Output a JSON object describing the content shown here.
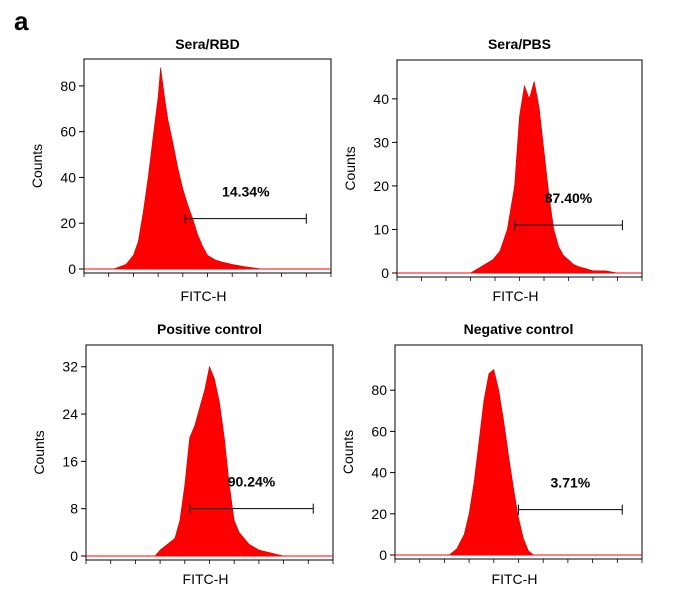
{
  "figure": {
    "panel_label": "a"
  },
  "chart_data": [
    {
      "type": "area",
      "title": "Sera/RBD",
      "xlabel": "FITC-H",
      "ylabel": "Counts",
      "ylim": [
        0,
        90
      ],
      "yticks": [
        0,
        20,
        40,
        60,
        80
      ],
      "xlim": [
        0,
        1
      ],
      "x": [
        0.0,
        0.12,
        0.17,
        0.2,
        0.22,
        0.24,
        0.26,
        0.28,
        0.3,
        0.31,
        0.32,
        0.33,
        0.34,
        0.36,
        0.38,
        0.4,
        0.42,
        0.44,
        0.46,
        0.48,
        0.5,
        0.53,
        0.56,
        0.6,
        0.65,
        0.72,
        1.0
      ],
      "values": [
        0,
        0,
        2,
        6,
        12,
        25,
        40,
        58,
        75,
        88,
        80,
        72,
        65,
        55,
        44,
        35,
        28,
        22,
        15,
        10,
        6,
        4,
        3,
        2,
        1,
        0,
        0
      ],
      "color": "#ff0000",
      "gate": {
        "label": "14.34%",
        "x_range": [
          0.41,
          0.9
        ],
        "y": 22
      }
    },
    {
      "type": "area",
      "title": "Sera/PBS",
      "xlabel": "FITC-H",
      "ylabel": "Counts",
      "ylim": [
        0,
        48
      ],
      "yticks": [
        0,
        10,
        20,
        30,
        40
      ],
      "xlim": [
        0,
        1
      ],
      "x": [
        0.0,
        0.3,
        0.33,
        0.36,
        0.39,
        0.42,
        0.45,
        0.48,
        0.5,
        0.52,
        0.54,
        0.56,
        0.58,
        0.6,
        0.62,
        0.64,
        0.66,
        0.68,
        0.7,
        0.72,
        0.74,
        0.77,
        0.8,
        0.85,
        0.9,
        1.0
      ],
      "values": [
        0,
        0,
        1,
        2,
        3,
        5,
        10,
        20,
        36,
        43,
        40,
        44,
        38,
        28,
        18,
        10,
        6,
        4,
        3,
        2,
        1.5,
        1,
        0.5,
        0.5,
        0,
        0
      ],
      "color": "#ff0000",
      "gate": {
        "label": "87.40%",
        "x_range": [
          0.48,
          0.92
        ],
        "y": 11
      }
    },
    {
      "type": "area",
      "title": "Positive control",
      "xlabel": "FITC-H",
      "ylabel": "Counts",
      "ylim": [
        0,
        35
      ],
      "yticks": [
        0,
        8,
        16,
        24,
        32
      ],
      "xlim": [
        0,
        1
      ],
      "x": [
        0.0,
        0.28,
        0.3,
        0.33,
        0.36,
        0.38,
        0.4,
        0.42,
        0.44,
        0.46,
        0.48,
        0.5,
        0.52,
        0.54,
        0.56,
        0.58,
        0.6,
        0.62,
        0.64,
        0.66,
        0.68,
        0.7,
        0.75,
        0.8,
        1.0
      ],
      "values": [
        0,
        0,
        1,
        2,
        3,
        6,
        12,
        20,
        22,
        25,
        28,
        32,
        30,
        26,
        20,
        12,
        6,
        4,
        3,
        2,
        1.5,
        1,
        0.5,
        0,
        0
      ],
      "color": "#ff0000",
      "gate": {
        "label": "90.24%",
        "x_range": [
          0.42,
          0.92
        ],
        "y": 8
      }
    },
    {
      "type": "area",
      "title": "Negative control",
      "xlabel": "FITC-H",
      "ylabel": "Counts",
      "ylim": [
        0,
        100
      ],
      "yticks": [
        0,
        20,
        40,
        60,
        80
      ],
      "xlim": [
        0,
        1
      ],
      "x": [
        0.0,
        0.22,
        0.25,
        0.28,
        0.3,
        0.32,
        0.34,
        0.36,
        0.38,
        0.4,
        0.42,
        0.44,
        0.46,
        0.48,
        0.5,
        0.52,
        0.54,
        0.56,
        1.0
      ],
      "values": [
        0,
        0,
        3,
        10,
        20,
        35,
        55,
        75,
        88,
        90,
        80,
        65,
        48,
        32,
        18,
        8,
        2,
        0,
        0
      ],
      "color": "#ff0000",
      "gate": {
        "label": "3.71%",
        "x_range": [
          0.5,
          0.92
        ],
        "y": 22
      }
    }
  ]
}
